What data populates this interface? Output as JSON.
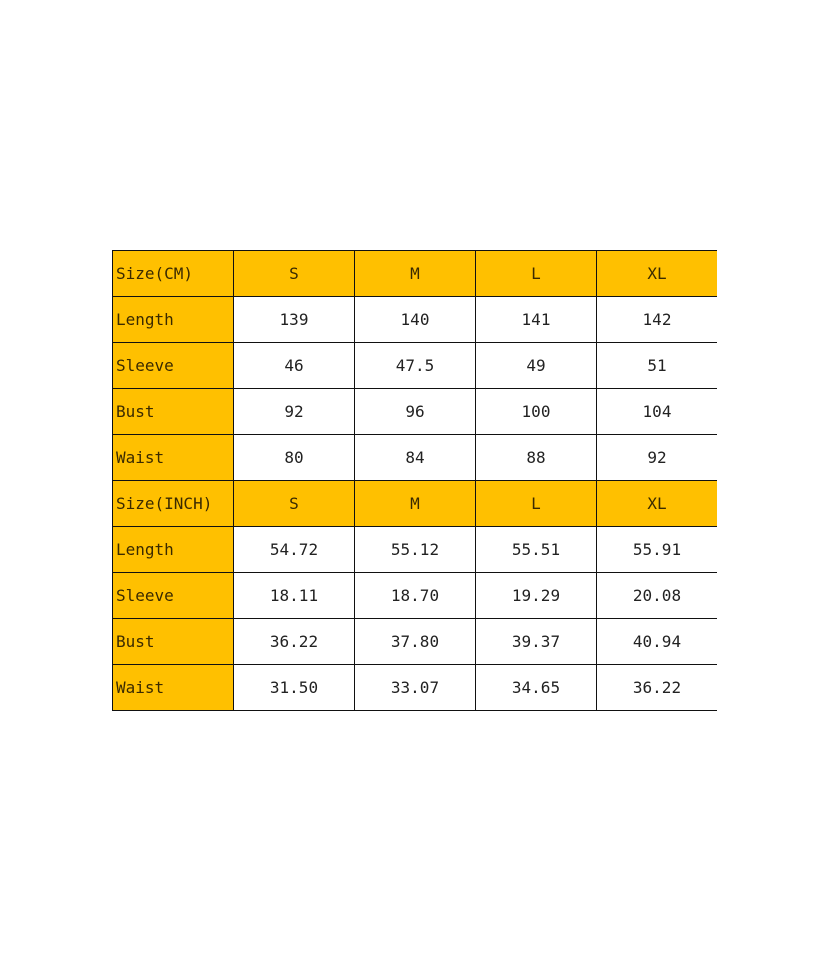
{
  "colors": {
    "header_fill": "#FFC000",
    "border": "#111111"
  },
  "sections": [
    {
      "header": [
        "Size(CM)",
        "S",
        "M",
        "L",
        "XL"
      ],
      "rows": [
        [
          "Length",
          "139",
          "140",
          "141",
          "142"
        ],
        [
          "Sleeve",
          "46",
          "47.5",
          "49",
          "51"
        ],
        [
          "Bust",
          "92",
          "96",
          "100",
          "104"
        ],
        [
          "Waist",
          "80",
          "84",
          "88",
          "92"
        ]
      ]
    },
    {
      "header": [
        "Size(INCH)",
        "S",
        "M",
        "L",
        "XL"
      ],
      "rows": [
        [
          "Length",
          "54.72",
          "55.12",
          "55.51",
          "55.91"
        ],
        [
          "Sleeve",
          "18.11",
          "18.70",
          "19.29",
          "20.08"
        ],
        [
          "Bust",
          "36.22",
          "37.80",
          "39.37",
          "40.94"
        ],
        [
          "Waist",
          "31.50",
          "33.07",
          "34.65",
          "36.22"
        ]
      ]
    }
  ]
}
